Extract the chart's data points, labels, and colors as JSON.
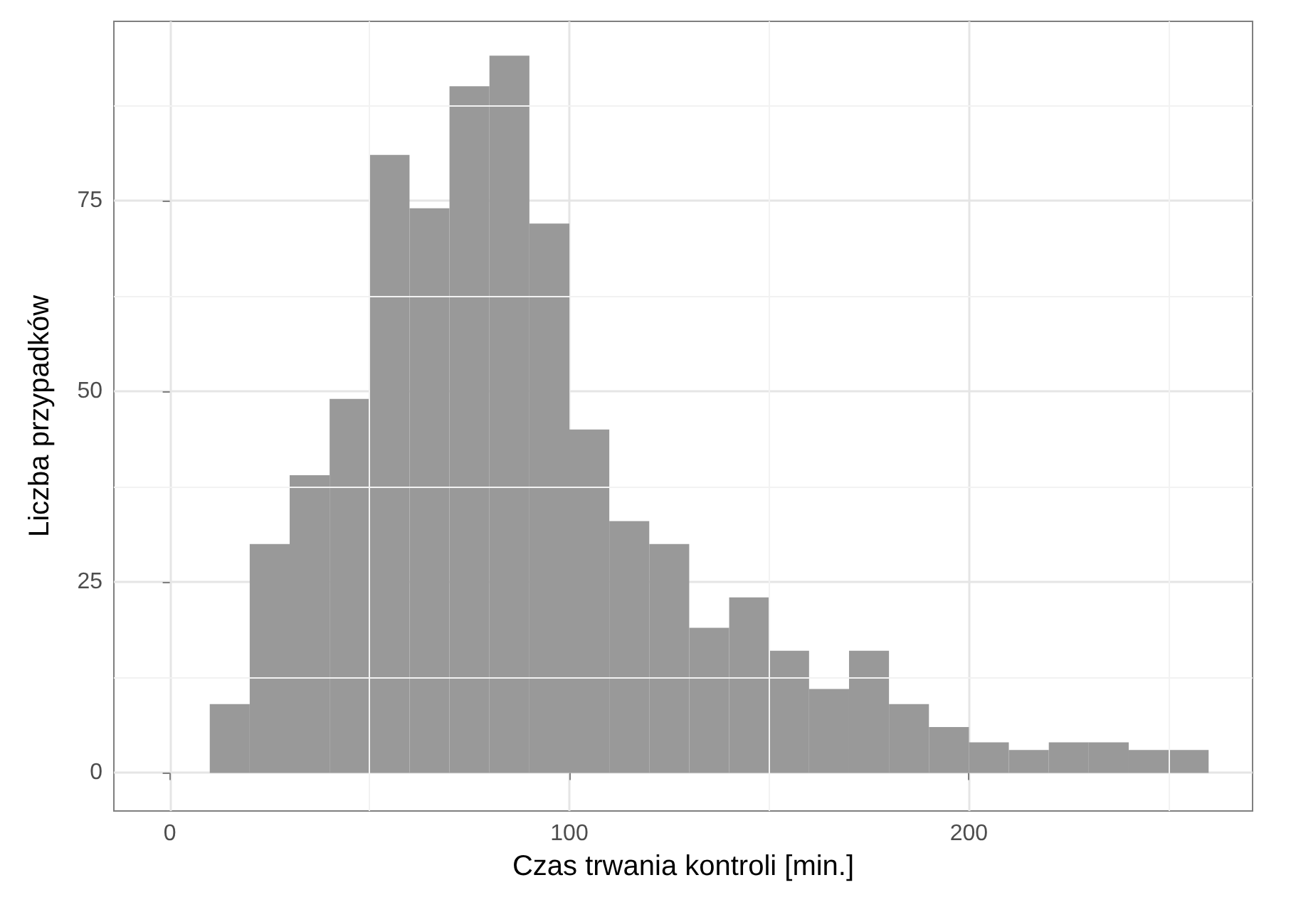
{
  "chart_data": {
    "type": "histogram",
    "xlabel": "Czas trwania kontroli [min.]",
    "ylabel": "Liczba przypadków",
    "bins": [
      10,
      20,
      30,
      40,
      50,
      60,
      70,
      80,
      90,
      100,
      110,
      120,
      130,
      140,
      150,
      160,
      170,
      180,
      190,
      200,
      210,
      220,
      230,
      240,
      250,
      260
    ],
    "values": [
      9,
      30,
      39,
      49,
      81,
      74,
      90,
      94,
      72,
      45,
      33,
      30,
      19,
      23,
      16,
      11,
      16,
      9,
      6,
      4,
      3,
      4,
      4,
      3,
      3
    ],
    "color": "#999999",
    "xlim": [
      -14,
      271
    ],
    "xticks": [
      0,
      100,
      200
    ],
    "ylim": [
      -5,
      98.5
    ],
    "yticks": [
      0,
      25,
      50,
      75
    ],
    "grid": true,
    "legend": false
  }
}
